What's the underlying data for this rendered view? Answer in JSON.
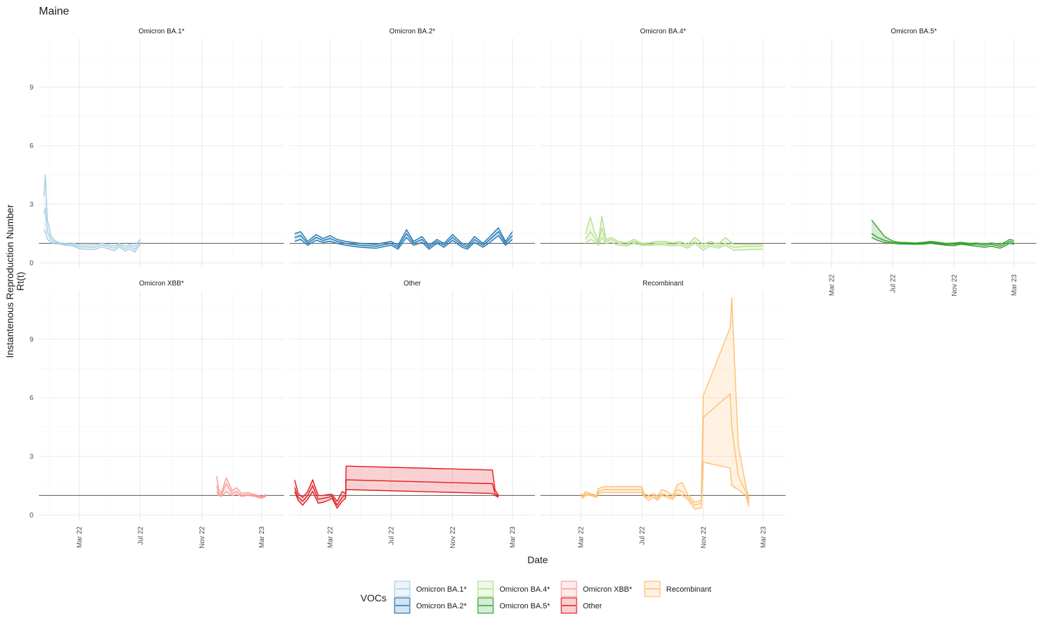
{
  "chart_data": {
    "type": "line",
    "title": "Maine",
    "xlabel": "Date",
    "ylabel_line1": "Instantenous Reproduction Number",
    "ylabel_line2": "Rt(t)",
    "xlim": [
      "2021-12-10",
      "2023-04-15"
    ],
    "ylim": [
      -0.3,
      11.5
    ],
    "x_ticks": [
      {
        "date": "2022-03-01",
        "label": "Mar 22"
      },
      {
        "date": "2022-07-01",
        "label": "Jul 22"
      },
      {
        "date": "2022-11-01",
        "label": "Nov 22"
      },
      {
        "date": "2023-03-01",
        "label": "Mar 23"
      }
    ],
    "y_ticks": [
      0,
      3,
      6,
      9
    ],
    "reference_line": 1,
    "grid": true,
    "legend": {
      "title": "VOCs",
      "position": "bottom",
      "entries": [
        "Omicron BA.1*",
        "Omicron BA.2*",
        "Omicron BA.4*",
        "Omicron BA.5*",
        "Omicron XBB*",
        "Other",
        "Recombinant"
      ]
    },
    "panels": [
      {
        "name": "Omicron BA.1*",
        "color": "#a6cee3",
        "x": [
          "2021-12-20",
          "2021-12-23",
          "2021-12-27",
          "2022-01-03",
          "2022-01-10",
          "2022-01-20",
          "2022-02-01",
          "2022-02-15",
          "2022-03-01",
          "2022-03-15",
          "2022-04-01",
          "2022-04-15",
          "2022-05-01",
          "2022-05-10",
          "2022-05-20",
          "2022-06-01",
          "2022-06-10",
          "2022-06-20",
          "2022-07-01"
        ],
        "mid": [
          2.5,
          2.8,
          1.6,
          1.2,
          1.05,
          1.0,
          0.95,
          0.95,
          0.82,
          0.82,
          0.8,
          0.92,
          0.82,
          0.75,
          0.92,
          0.72,
          0.85,
          0.7,
          1.05
        ],
        "lower": [
          1.7,
          1.6,
          1.2,
          1.05,
          0.98,
          0.97,
          0.9,
          0.88,
          0.72,
          0.7,
          0.68,
          0.82,
          0.7,
          0.62,
          0.82,
          0.6,
          0.72,
          0.55,
          0.95
        ],
        "upper": [
          3.4,
          4.5,
          2.2,
          1.4,
          1.15,
          1.03,
          1.0,
          1.02,
          0.92,
          0.92,
          0.92,
          1.0,
          0.92,
          0.88,
          1.0,
          0.85,
          0.95,
          0.85,
          1.2
        ]
      },
      {
        "name": "Omicron BA.2*",
        "color": "#1f78b4",
        "x": [
          "2021-12-20",
          "2022-01-01",
          "2022-01-15",
          "2022-02-01",
          "2022-02-15",
          "2022-03-01",
          "2022-03-15",
          "2022-04-01",
          "2022-05-01",
          "2022-06-01",
          "2022-07-01",
          "2022-07-15",
          "2022-08-01",
          "2022-08-15",
          "2022-09-01",
          "2022-09-15",
          "2022-10-01",
          "2022-10-15",
          "2022-11-01",
          "2022-11-20",
          "2022-12-01",
          "2022-12-15",
          "2023-01-01",
          "2023-01-15",
          "2023-02-01",
          "2023-02-15",
          "2023-03-01"
        ],
        "mid": [
          1.3,
          1.4,
          1.0,
          1.3,
          1.15,
          1.25,
          1.1,
          1.0,
          0.9,
          0.85,
          1.0,
          0.8,
          1.5,
          1.0,
          1.2,
          0.8,
          1.1,
          0.9,
          1.3,
          0.9,
          0.8,
          1.2,
          0.9,
          1.2,
          1.6,
          1.0,
          1.4
        ],
        "lower": [
          1.1,
          1.2,
          0.9,
          1.15,
          1.05,
          1.1,
          1.0,
          0.9,
          0.8,
          0.75,
          0.9,
          0.7,
          1.3,
          0.9,
          1.05,
          0.7,
          1.0,
          0.8,
          1.15,
          0.8,
          0.7,
          1.05,
          0.8,
          1.05,
          1.4,
          0.9,
          1.2
        ],
        "upper": [
          1.5,
          1.6,
          1.1,
          1.45,
          1.25,
          1.4,
          1.2,
          1.1,
          1.0,
          0.95,
          1.1,
          0.9,
          1.7,
          1.1,
          1.35,
          0.9,
          1.2,
          1.0,
          1.45,
          1.0,
          0.9,
          1.35,
          1.0,
          1.35,
          1.8,
          1.1,
          1.6
        ]
      },
      {
        "name": "Omicron BA.4*",
        "color": "#b2df8a",
        "x": [
          "2022-03-10",
          "2022-03-20",
          "2022-03-28",
          "2022-04-05",
          "2022-04-12",
          "2022-04-20",
          "2022-05-01",
          "2022-05-15",
          "2022-06-01",
          "2022-06-15",
          "2022-07-01",
          "2022-07-15",
          "2022-08-01",
          "2022-08-15",
          "2022-09-01",
          "2022-09-15",
          "2022-10-01",
          "2022-10-15",
          "2022-11-01",
          "2022-11-15",
          "2022-12-01",
          "2022-12-15",
          "2023-01-01",
          "2023-02-01",
          "2023-03-01"
        ],
        "mid": [
          1.2,
          1.6,
          1.3,
          1.0,
          1.8,
          1.1,
          1.2,
          1.0,
          0.95,
          1.1,
          0.95,
          0.95,
          1.0,
          1.0,
          0.95,
          1.0,
          0.85,
          1.1,
          0.8,
          0.95,
          0.85,
          1.0,
          0.8,
          0.85,
          0.85
        ],
        "lower": [
          1.0,
          1.2,
          1.1,
          0.9,
          1.3,
          1.0,
          1.05,
          0.9,
          0.88,
          1.0,
          0.9,
          0.9,
          0.92,
          0.92,
          0.88,
          0.9,
          0.75,
          1.0,
          0.65,
          0.85,
          0.75,
          0.9,
          0.65,
          0.68,
          0.7
        ],
        "upper": [
          1.5,
          2.35,
          1.6,
          1.1,
          2.4,
          1.2,
          1.3,
          1.1,
          1.02,
          1.2,
          1.0,
          1.02,
          1.1,
          1.1,
          1.02,
          1.1,
          0.95,
          1.3,
          0.95,
          1.1,
          0.95,
          1.3,
          0.95,
          0.95,
          0.95
        ]
      },
      {
        "name": "Omicron BA.5*",
        "color": "#33a02c",
        "x": [
          "2022-05-20",
          "2022-06-01",
          "2022-06-15",
          "2022-07-01",
          "2022-07-15",
          "2022-08-01",
          "2022-08-15",
          "2022-09-01",
          "2022-09-15",
          "2022-10-01",
          "2022-10-15",
          "2022-11-01",
          "2022-11-15",
          "2022-12-01",
          "2022-12-15",
          "2023-01-01",
          "2023-01-15",
          "2023-02-01",
          "2023-02-10",
          "2023-02-20",
          "2023-03-01"
        ],
        "mid": [
          1.5,
          1.3,
          1.15,
          1.05,
          1.0,
          1.0,
          0.98,
          1.0,
          1.05,
          1.0,
          0.95,
          0.95,
          1.0,
          0.95,
          0.95,
          0.9,
          0.95,
          0.85,
          0.95,
          1.1,
          1.05
        ],
        "lower": [
          1.3,
          1.15,
          1.05,
          1.0,
          0.97,
          0.96,
          0.95,
          0.96,
          1.0,
          0.95,
          0.9,
          0.88,
          0.95,
          0.9,
          0.85,
          0.8,
          0.85,
          0.75,
          0.85,
          1.0,
          0.95
        ],
        "upper": [
          2.2,
          1.8,
          1.35,
          1.12,
          1.05,
          1.04,
          1.02,
          1.05,
          1.1,
          1.05,
          1.0,
          1.02,
          1.05,
          1.0,
          1.02,
          0.98,
          1.02,
          0.95,
          1.05,
          1.2,
          1.15
        ]
      },
      {
        "name": "Omicron XBB*",
        "color": "#fb9a99",
        "x": [
          "2022-12-01",
          "2022-12-05",
          "2022-12-10",
          "2022-12-20",
          "2023-01-01",
          "2023-01-10",
          "2023-01-20",
          "2023-02-01",
          "2023-02-15",
          "2023-03-01",
          "2023-03-10"
        ],
        "mid": [
          1.5,
          1.1,
          1.0,
          1.6,
          1.1,
          1.2,
          1.0,
          1.05,
          1.0,
          0.9,
          1.0
        ],
        "lower": [
          1.2,
          1.0,
          0.95,
          1.2,
          1.0,
          1.05,
          0.95,
          1.0,
          0.95,
          0.85,
          0.95
        ],
        "upper": [
          2.0,
          1.3,
          1.1,
          1.9,
          1.25,
          1.4,
          1.1,
          1.15,
          1.05,
          0.95,
          1.05
        ]
      },
      {
        "name": "Other",
        "color": "#e31a1c",
        "x": [
          "2021-12-20",
          "2021-12-27",
          "2022-01-05",
          "2022-01-15",
          "2022-01-25",
          "2022-02-05",
          "2022-02-15",
          "2022-02-25",
          "2022-03-05",
          "2022-03-15",
          "2022-03-25",
          "2022-04-01",
          "2022-04-02",
          "2023-01-20",
          "2023-01-25",
          "2023-02-01"
        ],
        "mid": [
          1.4,
          0.9,
          0.7,
          1.0,
          1.5,
          0.8,
          0.85,
          0.9,
          0.95,
          0.5,
          0.9,
          1.0,
          1.8,
          1.6,
          1.1,
          0.95
        ],
        "lower": [
          1.2,
          0.75,
          0.5,
          0.8,
          1.2,
          0.6,
          0.65,
          0.75,
          0.85,
          0.35,
          0.7,
          0.85,
          1.3,
          1.1,
          1.0,
          0.9
        ],
        "upper": [
          1.8,
          1.1,
          0.9,
          1.2,
          1.8,
          1.0,
          1.0,
          1.05,
          1.05,
          0.7,
          1.2,
          1.1,
          2.5,
          2.3,
          1.3,
          1.0
        ]
      },
      {
        "name": "Recombinant",
        "color": "#fdbf6f",
        "x": [
          "2022-03-01",
          "2022-03-05",
          "2022-03-10",
          "2022-03-20",
          "2022-04-01",
          "2022-04-05",
          "2022-04-15",
          "2022-05-01",
          "2022-06-01",
          "2022-07-01",
          "2022-07-05",
          "2022-07-15",
          "2022-07-25",
          "2022-08-01",
          "2022-08-10",
          "2022-08-20",
          "2022-09-01",
          "2022-09-10",
          "2022-09-20",
          "2022-10-01",
          "2022-10-15",
          "2022-10-28",
          "2022-11-01",
          "2022-12-25",
          "2022-12-28",
          "2023-01-10",
          "2023-01-25",
          "2023-02-01"
        ],
        "mid": [
          1.0,
          0.9,
          1.1,
          1.05,
          0.95,
          1.2,
          1.3,
          1.3,
          1.3,
          1.3,
          1.0,
          0.9,
          1.0,
          0.85,
          1.1,
          1.0,
          0.9,
          1.3,
          1.2,
          0.9,
          0.5,
          0.6,
          5.0,
          6.2,
          4.5,
          2.0,
          1.2,
          0.6
        ],
        "lower": [
          1.0,
          0.85,
          1.0,
          1.0,
          0.9,
          1.1,
          1.15,
          1.15,
          1.15,
          1.15,
          0.95,
          0.75,
          0.9,
          0.75,
          1.0,
          0.9,
          0.8,
          1.1,
          1.0,
          0.8,
          0.3,
          0.35,
          2.7,
          2.4,
          1.5,
          1.3,
          1.0,
          0.4
        ],
        "upper": [
          1.1,
          1.0,
          1.2,
          1.1,
          1.0,
          1.35,
          1.45,
          1.45,
          1.45,
          1.45,
          1.1,
          1.0,
          1.1,
          0.95,
          1.3,
          1.2,
          1.0,
          1.55,
          1.65,
          1.05,
          0.65,
          0.75,
          6.1,
          9.6,
          11.1,
          3.6,
          1.5,
          0.8
        ]
      }
    ]
  }
}
